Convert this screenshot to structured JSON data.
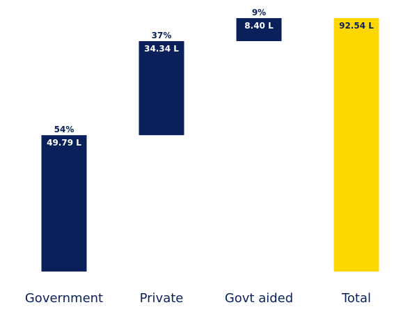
{
  "chart_data": {
    "type": "bar",
    "subtype": "waterfall",
    "categories": [
      "Government",
      "Private",
      "Govt aided",
      "Total"
    ],
    "values": [
      49.79,
      34.34,
      8.4,
      92.54
    ],
    "value_labels": [
      "49.79 L",
      "34.34 L",
      "8.40 L",
      "92.54 L"
    ],
    "percent_labels": [
      "54%",
      "37%",
      "9%",
      ""
    ],
    "is_total": [
      false,
      false,
      false,
      true
    ],
    "ylim": [
      0,
      92.54
    ],
    "grid": false,
    "colors": {
      "segment": "#0a205a",
      "total": "#ffd700",
      "segment_text": "#ffffff",
      "total_text": "#0a205a",
      "percent_text": "#0a205a",
      "category_text": "#0a205a"
    }
  }
}
